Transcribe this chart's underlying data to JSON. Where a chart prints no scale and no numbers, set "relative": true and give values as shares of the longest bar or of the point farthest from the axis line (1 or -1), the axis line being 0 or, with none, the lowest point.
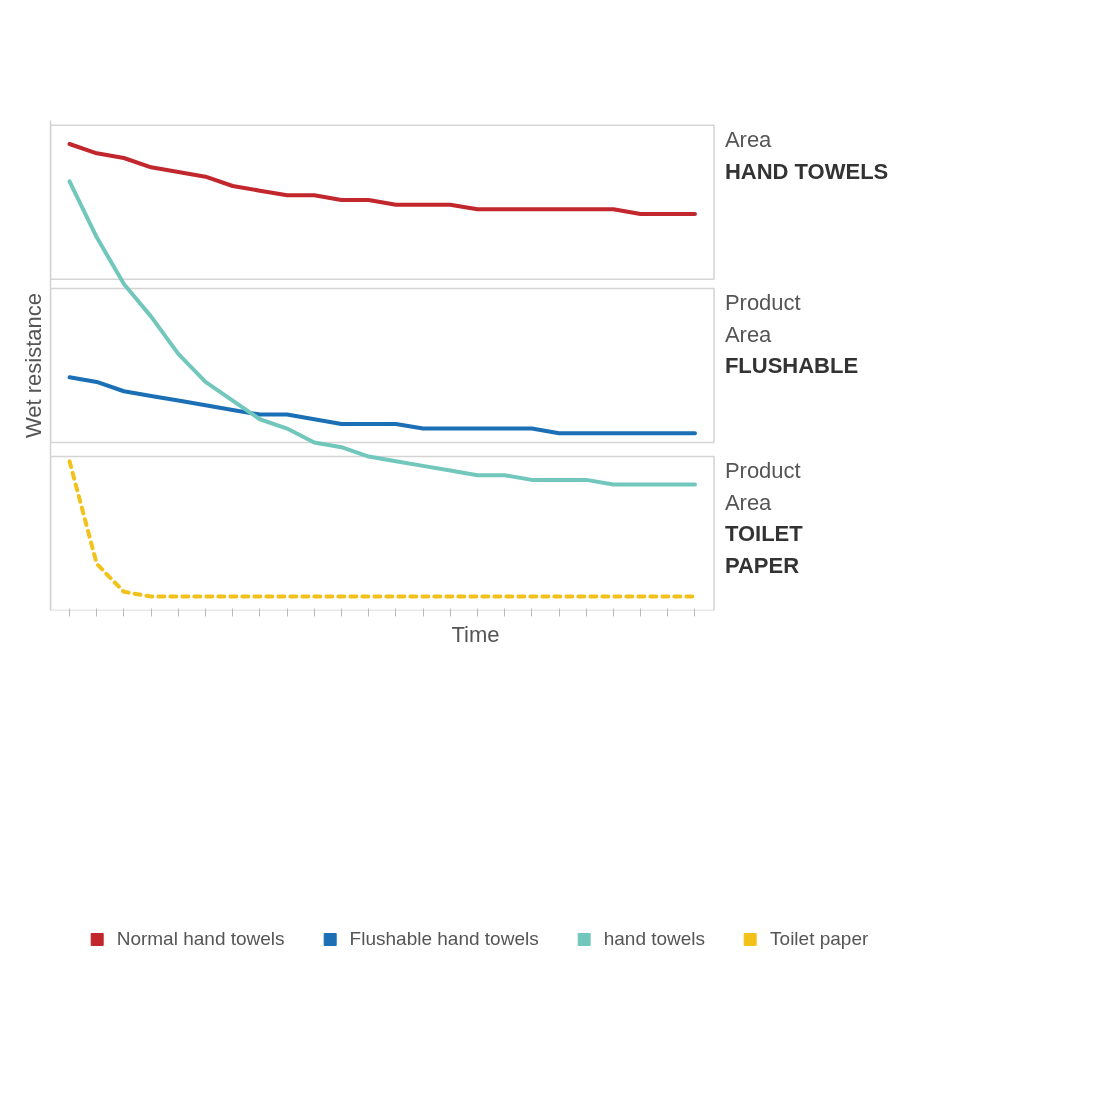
{
  "chart_data": {
    "type": "line",
    "relative": true,
    "xlabel": "Time",
    "ylabel": "Wet resistance",
    "categories": [
      null,
      null,
      null,
      null,
      null,
      null,
      null,
      null,
      null,
      null,
      null,
      null,
      null,
      null,
      null,
      null,
      null,
      null,
      null,
      null,
      null,
      null,
      null,
      null
    ],
    "series": [
      {
        "name": "Normal hand towels",
        "color": "#c1272d",
        "values": [
          1.0,
          0.98,
          0.97,
          0.95,
          0.94,
          0.93,
          0.91,
          0.9,
          0.89,
          0.89,
          0.88,
          0.88,
          0.87,
          0.87,
          0.87,
          0.86,
          0.86,
          0.86,
          0.86,
          0.86,
          0.86,
          0.85,
          0.85,
          0.85
        ]
      },
      {
        "name": "Flushable hand towels",
        "color": "#1a6fb5",
        "values": [
          0.5,
          0.49,
          0.47,
          0.46,
          0.45,
          0.44,
          0.43,
          0.42,
          0.42,
          0.41,
          0.4,
          0.4,
          0.4,
          0.39,
          0.39,
          0.39,
          0.39,
          0.39,
          0.38,
          0.38,
          0.38,
          0.38,
          0.38,
          0.38
        ]
      },
      {
        "name": "hand towels",
        "color": "#72c7bd",
        "values": [
          0.92,
          0.8,
          0.7,
          0.63,
          0.55,
          0.49,
          0.45,
          0.41,
          0.39,
          0.36,
          0.35,
          0.33,
          0.32,
          0.31,
          0.3,
          0.29,
          0.29,
          0.28,
          0.28,
          0.28,
          0.27,
          0.27,
          0.27,
          0.27
        ]
      },
      {
        "name": "Toilet paper",
        "color": "#f2c21b",
        "line_style": "dashed",
        "values": [
          0.32,
          0.1,
          0.04,
          0.03,
          0.03,
          0.03,
          0.03,
          0.03,
          0.03,
          0.03,
          0.03,
          0.03,
          0.03,
          0.03,
          0.03,
          0.03,
          0.03,
          0.03,
          0.03,
          0.03,
          0.03,
          0.03,
          0.03,
          0.03
        ]
      }
    ],
    "bands": [
      {
        "axis": "y",
        "from": 0.71,
        "to": 1.04,
        "label": "Area\nHAND TOWELS"
      },
      {
        "axis": "y",
        "from": 0.36,
        "to": 0.69,
        "label": "Product\nArea\nFLUSHABLE"
      },
      {
        "axis": "y",
        "from": 0.0,
        "to": 0.33,
        "label": "Product\nArea\nTOILET\nPAPER"
      }
    ],
    "grid": false,
    "legend": "bottom"
  }
}
